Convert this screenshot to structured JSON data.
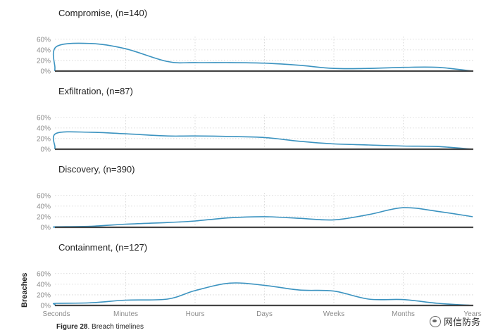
{
  "chart_data": [
    {
      "type": "area",
      "title": "Compromise, (n=140)",
      "categories": [
        "Seconds",
        "Minutes",
        "Hours",
        "Days",
        "Weeks",
        "Months",
        "Years"
      ],
      "y_tick_labels": [
        "0%",
        "20%",
        "40%",
        "60%"
      ],
      "ylim": [
        0,
        65
      ],
      "grid": true,
      "x": [
        -0.9,
        -0.5,
        0,
        0.5,
        1,
        1.6,
        2,
        2.5,
        3,
        3.5,
        4,
        4.5,
        5,
        5.5,
        6
      ],
      "values": [
        0,
        6,
        46,
        52,
        42,
        18,
        16,
        16,
        15,
        11,
        5,
        5,
        7,
        7,
        0
      ]
    },
    {
      "type": "area",
      "title": "Exfiltration, (n=87)",
      "categories": [
        "Seconds",
        "Minutes",
        "Hours",
        "Days",
        "Weeks",
        "Months",
        "Years"
      ],
      "y_tick_labels": [
        "0%",
        "20%",
        "40%",
        "60%"
      ],
      "ylim": [
        0,
        65
      ],
      "grid": true,
      "x": [
        -0.9,
        -0.5,
        0,
        0.5,
        1,
        1.6,
        2,
        2.5,
        3,
        3.5,
        4,
        4.5,
        5,
        5.5,
        6
      ],
      "values": [
        0,
        4,
        30,
        32,
        29,
        25,
        25,
        24,
        22,
        15,
        10,
        8,
        6,
        5,
        0
      ]
    },
    {
      "type": "area",
      "title": "Discovery, (n=390)",
      "categories": [
        "Seconds",
        "Minutes",
        "Hours",
        "Days",
        "Weeks",
        "Months",
        "Years"
      ],
      "y_tick_labels": [
        "0%",
        "20%",
        "40%",
        "60%"
      ],
      "ylim": [
        0,
        65
      ],
      "grid": true,
      "x": [
        -0.9,
        -0.5,
        0,
        0.5,
        1,
        1.6,
        2,
        2.5,
        3,
        3.5,
        4,
        4.5,
        5,
        5.5,
        6
      ],
      "values": [
        0,
        0,
        1,
        2,
        6,
        9,
        12,
        18,
        20,
        17,
        14,
        24,
        37,
        30,
        20
      ]
    },
    {
      "type": "area",
      "title": "Containment, (n=127)",
      "categories": [
        "Seconds",
        "Minutes",
        "Hours",
        "Days",
        "Weeks",
        "Months",
        "Years"
      ],
      "y_tick_labels": [
        "0%",
        "20%",
        "40%",
        "60%"
      ],
      "ylim": [
        0,
        65
      ],
      "grid": true,
      "x": [
        -0.9,
        -0.5,
        0,
        0.5,
        1,
        1.6,
        2,
        2.5,
        3,
        3.5,
        4,
        4.5,
        5,
        5.5,
        6
      ],
      "values": [
        0,
        2,
        4,
        5,
        10,
        12,
        28,
        42,
        38,
        29,
        27,
        12,
        11,
        4,
        0
      ]
    }
  ],
  "y_axis_title": "Breaches",
  "caption": {
    "label": "Figure 28",
    "text": ". Breach timelines"
  },
  "watermark": {
    "text": "网信防务"
  },
  "colors": {
    "line": "#3b93c0",
    "baseline": "#444444",
    "grid": "#d2d2d2",
    "tick_text": "#8a8a8a"
  }
}
